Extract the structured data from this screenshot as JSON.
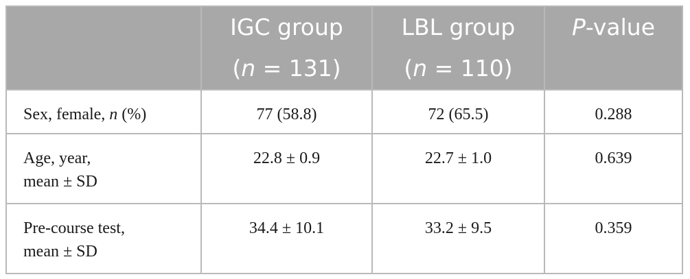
{
  "header": {
    "col0": "",
    "col1": {
      "line1": "IGC group",
      "n_italic": "n",
      "n_rest": " = 131)",
      "n_open": "("
    },
    "col2": {
      "line1": "LBL group",
      "n_italic": "n",
      "n_rest": " = 110)",
      "n_open": "("
    },
    "col3": {
      "p_italic": "P",
      "p_rest": "-value"
    }
  },
  "rows": [
    {
      "label_a": "Sex, female, ",
      "label_italic": "n",
      "label_b": " (%)",
      "igc": "77 (58.8)",
      "lbl": "72 (65.5)",
      "p": "0.288"
    },
    {
      "label_line1": "Age, year,",
      "label_line2": "mean ± SD",
      "igc": "22.8 ± 0.9",
      "lbl": "22.7 ± 1.0",
      "p": "0.639"
    },
    {
      "label_line1": "Pre-course test,",
      "label_line2": "mean ± SD",
      "igc": "34.4 ± 10.1",
      "lbl": "33.2 ± 9.5",
      "p": "0.359"
    }
  ]
}
